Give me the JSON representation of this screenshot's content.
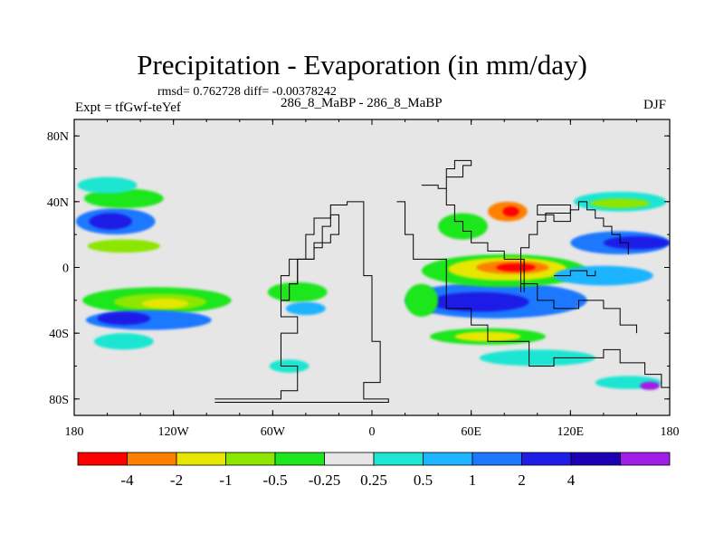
{
  "chart_data": {
    "type": "heatmap",
    "title": "Precipitation - Evaporation (in mm/day)",
    "stats_text": "rmsd= 0.762728  diff= -0.00378242",
    "experiment_label": "Expt = tfGwf-teYef",
    "subtitle": "286_8_MaBP - 286_8_MaBP",
    "season": "DJF",
    "x_axis": {
      "range": [
        -180,
        180
      ],
      "ticks": [
        {
          "value": -180,
          "label": "180"
        },
        {
          "value": -120,
          "label": "120W"
        },
        {
          "value": -60,
          "label": "60W"
        },
        {
          "value": 0,
          "label": "0"
        },
        {
          "value": 60,
          "label": "60E"
        },
        {
          "value": 120,
          "label": "120E"
        },
        {
          "value": 180,
          "label": "180"
        }
      ]
    },
    "y_axis": {
      "range": [
        -90,
        90
      ],
      "ticks": [
        {
          "value": 80,
          "label": "80N"
        },
        {
          "value": 40,
          "label": "40N"
        },
        {
          "value": 0,
          "label": "0"
        },
        {
          "value": -40,
          "label": "40S"
        },
        {
          "value": -80,
          "label": "80S"
        }
      ]
    },
    "colorbar": {
      "colors": [
        "#ff0000",
        "#ff8000",
        "#e6e600",
        "#8ce600",
        "#1ee61e",
        "#e6e6e6",
        "#1ee6d2",
        "#1eb4ff",
        "#1e78ff",
        "#1e1ee6",
        "#1e00b4",
        "#a01ee6"
      ],
      "labels": [
        "-4",
        "-2",
        "-1",
        "-0.5",
        "-0.25",
        "0.25",
        "0.5",
        "1",
        "2",
        "4"
      ]
    },
    "background_color": "#e6e6e6",
    "features": [
      {
        "name": "north-pacific-storm-track",
        "lon": -155,
        "lat": 28,
        "rlon": 24,
        "rlat": 8,
        "color": "#1e78ff"
      },
      {
        "name": "north-pacific-core",
        "lon": -158,
        "lat": 28,
        "rlon": 13,
        "rlat": 5,
        "color": "#1e1ee6"
      },
      {
        "name": "north-pacific-dry-band",
        "lon": -150,
        "lat": 42,
        "rlon": 24,
        "rlat": 6,
        "color": "#1ee61e"
      },
      {
        "name": "north-pacific-teal",
        "lon": -160,
        "lat": 50,
        "rlon": 18,
        "rlat": 5,
        "color": "#1ee6d2"
      },
      {
        "name": "north-pacific-south-dry",
        "lon": -150,
        "lat": 13,
        "rlon": 22,
        "rlat": 4,
        "color": "#8ce600"
      },
      {
        "name": "south-pacific-dry",
        "lon": -130,
        "lat": -20,
        "rlon": 45,
        "rlat": 8,
        "color": "#1ee61e"
      },
      {
        "name": "south-pacific-dry-core",
        "lon": -128,
        "lat": -21,
        "rlon": 28,
        "rlat": 5,
        "color": "#8ce600"
      },
      {
        "name": "south-pacific-dry-center",
        "lon": -125,
        "lat": -22,
        "rlon": 14,
        "rlat": 3,
        "color": "#e6e600"
      },
      {
        "name": "south-pacific-wet",
        "lon": -135,
        "lat": -32,
        "rlon": 38,
        "rlat": 6,
        "color": "#1e78ff"
      },
      {
        "name": "south-pacific-wet-core",
        "lon": -150,
        "lat": -31,
        "rlon": 16,
        "rlat": 4,
        "color": "#1e1ee6"
      },
      {
        "name": "south-pacific-teal",
        "lon": -150,
        "lat": -45,
        "rlon": 18,
        "rlat": 5,
        "color": "#1ee6d2"
      },
      {
        "name": "atlantic-dry",
        "lon": -45,
        "lat": -15,
        "rlon": 18,
        "rlat": 6,
        "color": "#1ee61e"
      },
      {
        "name": "atlantic-wet",
        "lon": -40,
        "lat": -25,
        "rlon": 12,
        "rlat": 4,
        "color": "#1eb4ff"
      },
      {
        "name": "south-atlantic-teal",
        "lon": -50,
        "lat": -60,
        "rlon": 12,
        "rlat": 4,
        "color": "#1ee6d2"
      },
      {
        "name": "indian-ocean-wet-band",
        "lon": 75,
        "lat": -20,
        "rlon": 55,
        "rlat": 11,
        "color": "#1e78ff"
      },
      {
        "name": "indian-ocean-wet-core",
        "lon": 65,
        "lat": -21,
        "rlon": 30,
        "rlat": 6,
        "color": "#1e1ee6"
      },
      {
        "name": "indian-ocean-dry-band",
        "lon": 80,
        "lat": -2,
        "rlon": 50,
        "rlat": 10,
        "color": "#1ee61e"
      },
      {
        "name": "indian-ocean-dry-core",
        "lon": 82,
        "lat": -1,
        "rlon": 36,
        "rlat": 7,
        "color": "#e6e600"
      },
      {
        "name": "indian-ocean-dry-center",
        "lon": 85,
        "lat": 0,
        "rlon": 22,
        "rlat": 4,
        "color": "#ff8000"
      },
      {
        "name": "indian-ocean-dry-max",
        "lon": 87,
        "lat": 0,
        "rlon": 12,
        "rlat": 2.5,
        "color": "#ff0000"
      },
      {
        "name": "southern-indian-dry",
        "lon": 70,
        "lat": -42,
        "rlon": 35,
        "rlat": 5,
        "color": "#1ee61e"
      },
      {
        "name": "southern-indian-dry-core",
        "lon": 70,
        "lat": -42,
        "rlon": 20,
        "rlat": 3,
        "color": "#e6e600"
      },
      {
        "name": "southern-ocean-teal",
        "lon": 100,
        "lat": -55,
        "rlon": 35,
        "rlat": 5,
        "color": "#1ee6d2"
      },
      {
        "name": "east-asia-wet",
        "lon": 150,
        "lat": 15,
        "rlon": 30,
        "rlat": 7,
        "color": "#1e78ff"
      },
      {
        "name": "east-asia-wet-core",
        "lon": 160,
        "lat": 15,
        "rlon": 20,
        "rlat": 4,
        "color": "#1e1ee6"
      },
      {
        "name": "east-asia-teal",
        "lon": 150,
        "lat": 40,
        "rlon": 28,
        "rlat": 6,
        "color": "#1ee6d2"
      },
      {
        "name": "east-asia-dry",
        "lon": 150,
        "lat": 39,
        "rlon": 18,
        "rlat": 3,
        "color": "#8ce600"
      },
      {
        "name": "arabia-dry",
        "lon": 55,
        "lat": 25,
        "rlon": 15,
        "rlat": 8,
        "color": "#1ee61e"
      },
      {
        "name": "mediterranean-dry",
        "lon": 82,
        "lat": 34,
        "rlon": 12,
        "rlat": 6,
        "color": "#ff8000"
      },
      {
        "name": "mediterranean-dry-core",
        "lon": 84,
        "lat": 34,
        "rlon": 5,
        "rlat": 3,
        "color": "#ff0000"
      },
      {
        "name": "africa-dry",
        "lon": 30,
        "lat": -20,
        "rlon": 10,
        "rlat": 10,
        "color": "#1ee61e"
      },
      {
        "name": "pacific-southeast-wet",
        "lon": 140,
        "lat": -5,
        "rlon": 30,
        "rlat": 6,
        "color": "#1eb4ff"
      },
      {
        "name": "far-south-wet",
        "lon": 155,
        "lat": -70,
        "rlon": 20,
        "rlat": 4,
        "color": "#1ee6d2"
      },
      {
        "name": "far-south-violet",
        "lon": 168,
        "lat": -72,
        "rlon": 6,
        "rlat": 2.5,
        "color": "#a01ee6"
      }
    ],
    "coastlines": [
      [
        [
          -95,
          -80
        ],
        [
          -55,
          -80
        ],
        [
          -55,
          -75
        ],
        [
          -45,
          -75
        ],
        [
          -45,
          -60
        ],
        [
          -55,
          -60
        ],
        [
          -55,
          -40
        ],
        [
          -45,
          -40
        ],
        [
          -45,
          -30
        ],
        [
          -55,
          -30
        ],
        [
          -55,
          -20
        ],
        [
          -50,
          -10
        ],
        [
          -45,
          5
        ],
        [
          -35,
          12
        ],
        [
          -30,
          25
        ],
        [
          -25,
          38
        ],
        [
          -15,
          40
        ],
        [
          -5,
          33
        ],
        [
          -5,
          -5
        ],
        [
          0,
          -20
        ],
        [
          0,
          -45
        ],
        [
          5,
          -70
        ],
        [
          -5,
          -72
        ],
        [
          -5,
          -80
        ],
        [
          5,
          -80
        ],
        [
          10,
          -82
        ],
        [
          -95,
          -82
        ]
      ],
      [
        [
          -50,
          -20
        ],
        [
          -55,
          -5
        ],
        [
          -50,
          5
        ],
        [
          -40,
          20
        ],
        [
          -35,
          30
        ],
        [
          -25,
          32
        ],
        [
          -20,
          20
        ],
        [
          -25,
          15
        ],
        [
          -35,
          5
        ],
        [
          -45,
          -10
        ],
        [
          -50,
          -20
        ]
      ],
      [
        [
          15,
          40
        ],
        [
          20,
          20
        ],
        [
          25,
          5
        ],
        [
          45,
          -10
        ],
        [
          45,
          -25
        ],
        [
          60,
          -35
        ],
        [
          70,
          -45
        ],
        [
          95,
          -60
        ],
        [
          110,
          -55
        ],
        [
          140,
          -50
        ],
        [
          150,
          -58
        ],
        [
          165,
          -65
        ],
        [
          175,
          -73
        ],
        [
          180,
          -77
        ]
      ],
      [
        [
          30,
          50
        ],
        [
          40,
          48
        ],
        [
          45,
          60
        ],
        [
          50,
          65
        ],
        [
          60,
          62
        ],
        [
          55,
          55
        ],
        [
          45,
          50
        ],
        [
          45,
          38
        ],
        [
          50,
          28
        ],
        [
          55,
          22
        ],
        [
          60,
          15
        ],
        [
          70,
          10
        ],
        [
          80,
          5
        ],
        [
          90,
          12
        ],
        [
          95,
          20
        ],
        [
          100,
          28
        ],
        [
          105,
          32
        ],
        [
          110,
          28
        ],
        [
          120,
          35
        ],
        [
          125,
          40
        ],
        [
          130,
          35
        ],
        [
          135,
          30
        ],
        [
          140,
          25
        ],
        [
          145,
          20
        ],
        [
          150,
          15
        ],
        [
          155,
          8
        ]
      ],
      [
        [
          90,
          -10
        ],
        [
          100,
          -20
        ],
        [
          110,
          -25
        ],
        [
          125,
          -20
        ],
        [
          140,
          -25
        ],
        [
          150,
          -35
        ],
        [
          160,
          -40
        ]
      ],
      [
        [
          110,
          -5
        ],
        [
          120,
          -2
        ],
        [
          130,
          -5
        ],
        [
          135,
          -2
        ]
      ],
      [
        [
          100,
          38
        ],
        [
          115,
          38
        ],
        [
          120,
          33
        ],
        [
          105,
          32
        ],
        [
          100,
          38
        ]
      ],
      [
        [
          90,
          -15
        ],
        [
          90,
          5
        ],
        [
          92,
          5
        ],
        [
          92,
          -15
        ]
      ]
    ]
  }
}
